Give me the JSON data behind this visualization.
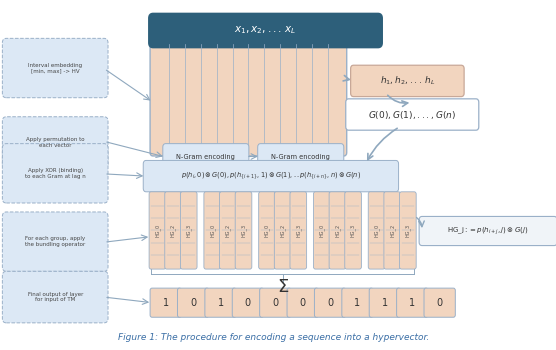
{
  "title": "Figure 1: The procedure for encoding a sequence into a hypervector.",
  "title_color": "#3a6ea5",
  "bg_color": "#ffffff",
  "header_box_color": "#2d5f7a",
  "header_text": "$x_1, x_2, ...\\, x_L$",
  "header_text_color": "#ffffff",
  "grid_fill": "#f2d5bf",
  "grid_stroke": "#9ab0c8",
  "h_box_fill": "#f2d5bf",
  "h_box_stroke": "#c8a898",
  "h_text": "$h_1, h_2, ...\\, h_L$",
  "G_box_fill": "#ffffff",
  "G_box_stroke": "#9ab0c8",
  "G_text": "$G(0), G(1), ..., G(n)$",
  "xor_box_fill": "#dce8f5",
  "xor_box_stroke": "#9ab0c8",
  "xor_text": "$p(h_i, 0)\\otimes G(0), p(h_{\\{i+1\\}}, 1)\\otimes G(1),..p(h_{\\{i+n\\}}, n)\\otimes G(n)$",
  "left_box_fill": "#dce8f5",
  "left_box_stroke": "#9ab0c8",
  "ngram_box_fill": "#dce8f5",
  "ngram_box_stroke": "#9ab0c8",
  "ngram1_text": "N-Gram encoding",
  "ngram2_text": "N-Gram encoding",
  "hg_box_fill": "#f0f4f8",
  "hg_box_stroke": "#9ab0c8",
  "hg_text": "$\\mathrm{HG\\_j} := p(h_{i+j}, j)\\otimes G(j)$",
  "output_bits": [
    1,
    0,
    1,
    0,
    0,
    0,
    0,
    1,
    1,
    1,
    0
  ],
  "output_box_fill": "#f2d5bf",
  "output_box_stroke": "#9ab0c8",
  "final_box_text": "Final output of layer\nfor input of TM",
  "sum_symbol": "$\\Sigma$",
  "arrow_color": "#8fa8be"
}
